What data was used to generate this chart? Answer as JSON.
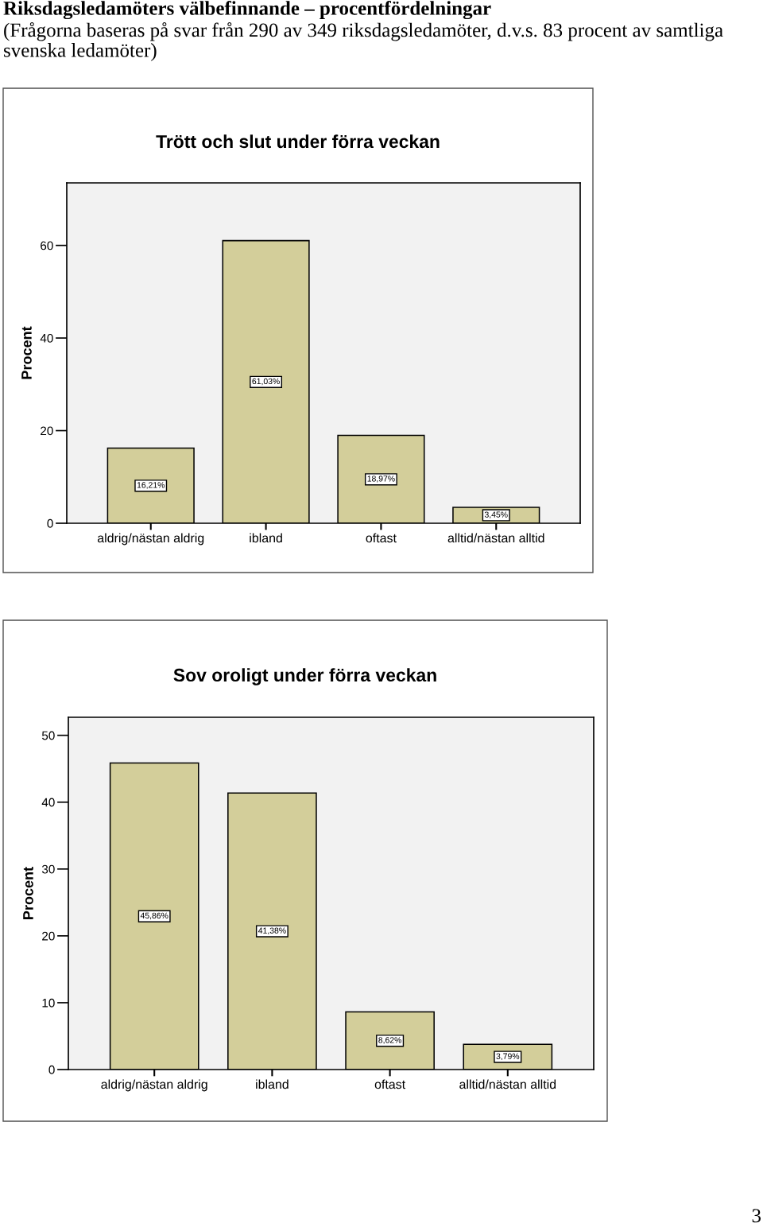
{
  "chart_data": [
    {
      "type": "bar",
      "title": "Trött och slut under förra veckan",
      "ylabel": "Procent",
      "categories": [
        "aldrig/nästan aldrig",
        "ibland",
        "oftast",
        "alltid/nästan alltid"
      ],
      "values": [
        16.21,
        61.03,
        18.97,
        3.45
      ],
      "value_labels": [
        "16,21%",
        "61,03%",
        "18,97%",
        "3,45%"
      ],
      "color": "#d3ce9a",
      "ylim": [
        0,
        73.5
      ],
      "yticks": [
        0,
        20,
        40,
        60
      ],
      "annotations": [
        "Riksdagsledamöters välbefinnande – procentfördelningar",
        "(Frågorna baseras på svar från 290 av 349 riksdagsledamöter, d.v.s. 83 procent av samtliga svenska ledamöter)"
      ]
    },
    {
      "type": "bar",
      "title": "Sov oroligt under förra veckan",
      "ylabel": "Procent",
      "categories": [
        "aldrig/nästan aldrig",
        "ibland",
        "oftast",
        "alltid/nästan alltid"
      ],
      "values": [
        45.86,
        41.38,
        8.62,
        3.79
      ],
      "value_labels": [
        "45,86%",
        "41,38%",
        "8,62%",
        "3,79%"
      ],
      "color": "#d3ce9a",
      "ylim": [
        0,
        52.7
      ],
      "yticks": [
        0,
        10,
        20,
        30,
        40,
        50
      ],
      "annotations": [
        "3"
      ]
    }
  ]
}
